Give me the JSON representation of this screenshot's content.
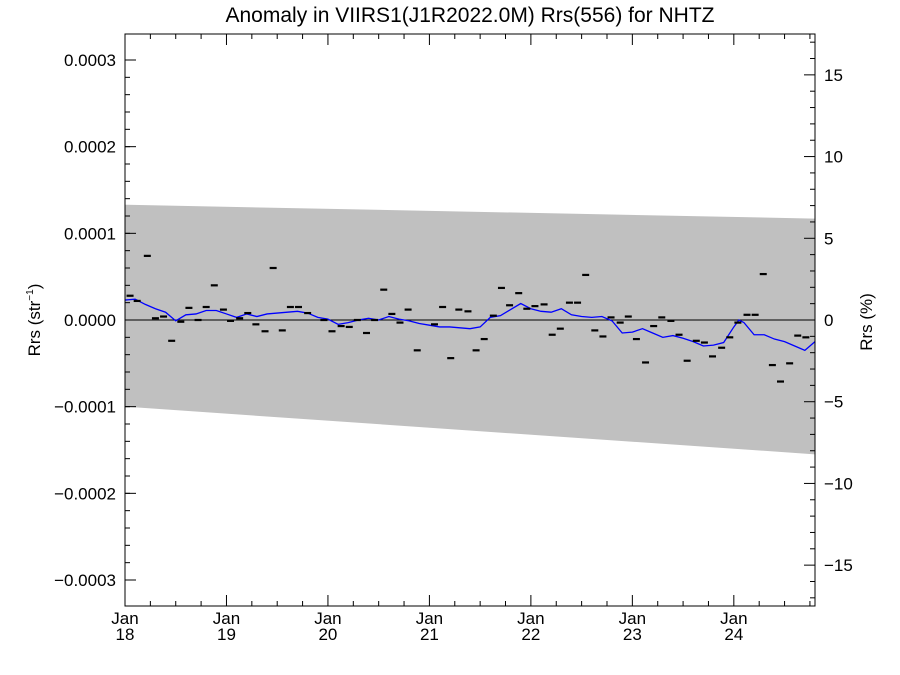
{
  "chart_data": {
    "type": "scatter",
    "title": "Anomaly in VIIRS1(J1R2022.0M) Rrs(556) for NHTZ",
    "ylabel": "Rrs (str",
    "ylabel_sup": "−1",
    "ylabel_close": ")",
    "y2label": "Rrs (%)",
    "xlim": [
      2018.0,
      2024.8
    ],
    "ylim": [
      -0.00033,
      0.00033
    ],
    "y2lim": [
      -17.5,
      17.5
    ],
    "x_ticks": [
      {
        "x": 2018,
        "month": "Jan",
        "year": "18"
      },
      {
        "x": 2019,
        "month": "Jan",
        "year": "19"
      },
      {
        "x": 2020,
        "month": "Jan",
        "year": "20"
      },
      {
        "x": 2021,
        "month": "Jan",
        "year": "21"
      },
      {
        "x": 2022,
        "month": "Jan",
        "year": "22"
      },
      {
        "x": 2023,
        "month": "Jan",
        "year": "23"
      },
      {
        "x": 2024,
        "month": "Jan",
        "year": "24"
      }
    ],
    "y_ticks": [
      {
        "v": 0.0003,
        "label": "0.0003"
      },
      {
        "v": 0.0002,
        "label": "0.0002"
      },
      {
        "v": 0.0001,
        "label": "0.0001"
      },
      {
        "v": 0.0,
        "label": "0.0000"
      },
      {
        "v": -0.0001,
        "label": "−0.0001"
      },
      {
        "v": -0.0002,
        "label": "−0.0002"
      },
      {
        "v": -0.0003,
        "label": "−0.0003"
      }
    ],
    "y2_ticks": [
      {
        "v": 15,
        "label": "15"
      },
      {
        "v": 10,
        "label": "10"
      },
      {
        "v": 5,
        "label": "5"
      },
      {
        "v": 0,
        "label": "0"
      },
      {
        "v": -5,
        "label": "−5"
      },
      {
        "v": -10,
        "label": "−10"
      },
      {
        "v": -15,
        "label": "−15"
      }
    ],
    "band": {
      "color": "#c0c0c0",
      "upper": [
        [
          2018.0,
          0.000133
        ],
        [
          2024.8,
          0.000117
        ]
      ],
      "lower": [
        [
          2018.0,
          -0.0001
        ],
        [
          2024.8,
          -0.000155
        ]
      ]
    },
    "zero_line": 0.0,
    "points": [
      [
        2018.05,
        2.8e-05
      ],
      [
        2018.12,
        2.2e-05
      ],
      [
        2018.22,
        7.4e-05
      ],
      [
        2018.3,
        2e-06
      ],
      [
        2018.38,
        4e-06
      ],
      [
        2018.46,
        -2.4e-05
      ],
      [
        2018.55,
        -2e-06
      ],
      [
        2018.63,
        1.4e-05
      ],
      [
        2018.72,
        0.0
      ],
      [
        2018.8,
        1.5e-05
      ],
      [
        2018.88,
        4e-05
      ],
      [
        2018.97,
        1.2e-05
      ],
      [
        2019.04,
        -1e-06
      ],
      [
        2019.13,
        2e-06
      ],
      [
        2019.21,
        8e-06
      ],
      [
        2019.29,
        -5e-06
      ],
      [
        2019.38,
        -1.3e-05
      ],
      [
        2019.46,
        6e-05
      ],
      [
        2019.55,
        -1.2e-05
      ],
      [
        2019.63,
        1.5e-05
      ],
      [
        2019.71,
        1.5e-05
      ],
      [
        2019.8,
        8e-06
      ],
      [
        2019.96,
        0.0
      ],
      [
        2020.04,
        -1.3e-05
      ],
      [
        2020.13,
        -7e-06
      ],
      [
        2020.21,
        -8e-06
      ],
      [
        2020.29,
        0.0
      ],
      [
        2020.38,
        -1.5e-05
      ],
      [
        2020.46,
        0.0
      ],
      [
        2020.55,
        3.5e-05
      ],
      [
        2020.63,
        7e-06
      ],
      [
        2020.71,
        -3e-06
      ],
      [
        2020.79,
        1.2e-05
      ],
      [
        2020.88,
        -3.5e-05
      ],
      [
        2021.05,
        -5e-06
      ],
      [
        2021.13,
        1.5e-05
      ],
      [
        2021.21,
        -4.4e-05
      ],
      [
        2021.29,
        1.2e-05
      ],
      [
        2021.38,
        1e-05
      ],
      [
        2021.46,
        -3.5e-05
      ],
      [
        2021.54,
        -2.2e-05
      ],
      [
        2021.63,
        5e-06
      ],
      [
        2021.71,
        3.7e-05
      ],
      [
        2021.79,
        1.7e-05
      ],
      [
        2021.88,
        3.1e-05
      ],
      [
        2021.96,
        1.3e-05
      ],
      [
        2022.04,
        1.6e-05
      ],
      [
        2022.13,
        1.8e-05
      ],
      [
        2022.21,
        -1.7e-05
      ],
      [
        2022.29,
        -1e-05
      ],
      [
        2022.38,
        2e-05
      ],
      [
        2022.46,
        2e-05
      ],
      [
        2022.54,
        5.2e-05
      ],
      [
        2022.63,
        -1.2e-05
      ],
      [
        2022.71,
        -1.9e-05
      ],
      [
        2022.79,
        3e-06
      ],
      [
        2022.88,
        -3e-06
      ],
      [
        2022.96,
        4e-06
      ],
      [
        2023.04,
        -2.2e-05
      ],
      [
        2023.13,
        -4.9e-05
      ],
      [
        2023.21,
        -7e-06
      ],
      [
        2023.29,
        3e-06
      ],
      [
        2023.38,
        -1e-06
      ],
      [
        2023.46,
        -1.7e-05
      ],
      [
        2023.54,
        -4.7e-05
      ],
      [
        2023.63,
        -2.4e-05
      ],
      [
        2023.71,
        -2.6e-05
      ],
      [
        2023.79,
        -4.2e-05
      ],
      [
        2023.88,
        -3.2e-05
      ],
      [
        2023.96,
        -2e-05
      ],
      [
        2024.04,
        -3e-06
      ],
      [
        2024.13,
        6e-06
      ],
      [
        2024.21,
        6e-06
      ],
      [
        2024.29,
        5.3e-05
      ],
      [
        2024.38,
        -5.2e-05
      ],
      [
        2024.46,
        -7.1e-05
      ],
      [
        2024.55,
        -5e-05
      ],
      [
        2024.63,
        -1.8e-05
      ],
      [
        2024.71,
        -2e-05
      ]
    ],
    "smooth_line": {
      "color": "#0000ff",
      "points": [
        [
          2018.0,
          2.3e-05
        ],
        [
          2018.1,
          2.4e-05
        ],
        [
          2018.2,
          1.8e-05
        ],
        [
          2018.3,
          1.3e-05
        ],
        [
          2018.4,
          9e-06
        ],
        [
          2018.5,
          -1e-06
        ],
        [
          2018.6,
          6e-06
        ],
        [
          2018.7,
          7e-06
        ],
        [
          2018.8,
          1.1e-05
        ],
        [
          2018.9,
          1.1e-05
        ],
        [
          2019.0,
          7e-06
        ],
        [
          2019.1,
          3e-06
        ],
        [
          2019.2,
          7e-06
        ],
        [
          2019.3,
          4e-06
        ],
        [
          2019.4,
          7e-06
        ],
        [
          2019.5,
          8e-06
        ],
        [
          2019.6,
          9e-06
        ],
        [
          2019.7,
          1e-05
        ],
        [
          2019.8,
          8e-06
        ],
        [
          2019.9,
          3e-06
        ],
        [
          2020.0,
          1e-06
        ],
        [
          2020.1,
          -5e-06
        ],
        [
          2020.2,
          -3e-06
        ],
        [
          2020.3,
          0.0
        ],
        [
          2020.4,
          2e-06
        ],
        [
          2020.5,
          0.0
        ],
        [
          2020.6,
          4e-06
        ],
        [
          2020.7,
          1e-06
        ],
        [
          2020.8,
          -1e-06
        ],
        [
          2020.9,
          -4e-06
        ],
        [
          2021.0,
          -6e-06
        ],
        [
          2021.1,
          -8e-06
        ],
        [
          2021.2,
          -8e-06
        ],
        [
          2021.3,
          -9e-06
        ],
        [
          2021.4,
          -1e-05
        ],
        [
          2021.5,
          -8e-06
        ],
        [
          2021.6,
          3e-06
        ],
        [
          2021.7,
          5e-06
        ],
        [
          2021.8,
          1.2e-05
        ],
        [
          2021.9,
          1.9e-05
        ],
        [
          2022.0,
          1.3e-05
        ],
        [
          2022.1,
          1e-05
        ],
        [
          2022.2,
          9e-06
        ],
        [
          2022.3,
          1.3e-05
        ],
        [
          2022.4,
          6e-06
        ],
        [
          2022.5,
          4e-06
        ],
        [
          2022.6,
          3e-06
        ],
        [
          2022.7,
          4e-06
        ],
        [
          2022.8,
          -1e-06
        ],
        [
          2022.9,
          -1.5e-05
        ],
        [
          2023.0,
          -1.4e-05
        ],
        [
          2023.1,
          -1e-05
        ],
        [
          2023.2,
          -1.5e-05
        ],
        [
          2023.3,
          -2e-05
        ],
        [
          2023.4,
          -1.8e-05
        ],
        [
          2023.5,
          -2.1e-05
        ],
        [
          2023.6,
          -2.5e-05
        ],
        [
          2023.7,
          -3e-05
        ],
        [
          2023.8,
          -2.9e-05
        ],
        [
          2023.9,
          -2.6e-05
        ],
        [
          2024.0,
          -8e-06
        ],
        [
          2024.05,
          0.0
        ],
        [
          2024.1,
          -3e-06
        ],
        [
          2024.2,
          -1.7e-05
        ],
        [
          2024.3,
          -1.7e-05
        ],
        [
          2024.4,
          -2.2e-05
        ],
        [
          2024.5,
          -2.5e-05
        ],
        [
          2024.6,
          -3e-05
        ],
        [
          2024.7,
          -3.5e-05
        ],
        [
          2024.8,
          -2.5e-05
        ]
      ]
    },
    "grid": false,
    "legend": "none"
  }
}
